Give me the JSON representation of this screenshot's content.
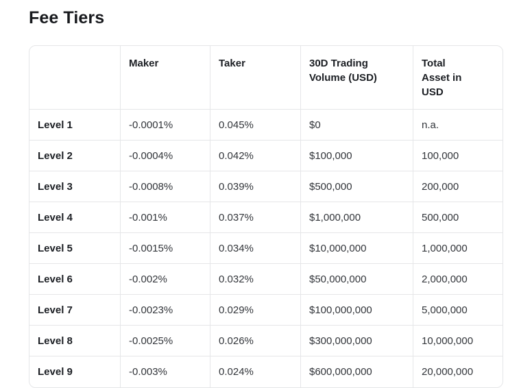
{
  "page": {
    "title": "Fee Tiers"
  },
  "colors": {
    "background": "#ffffff",
    "border": "#e5e6e8",
    "heading_text": "#17191d",
    "bold_cell_text": "#1b1e23",
    "cell_text": "#32353a"
  },
  "table": {
    "columns": [
      "",
      "Maker",
      "Taker",
      "30D Trading Volume (USD)",
      "Total Asset in USD"
    ],
    "rows": [
      {
        "level": "Level 1",
        "maker": "-0.0001%",
        "taker": "0.045%",
        "volume": "$0",
        "asset": "n.a."
      },
      {
        "level": "Level 2",
        "maker": "-0.0004%",
        "taker": "0.042%",
        "volume": "$100,000",
        "asset": "100,000"
      },
      {
        "level": "Level 3",
        "maker": "-0.0008%",
        "taker": "0.039%",
        "volume": "$500,000",
        "asset": "200,000"
      },
      {
        "level": "Level 4",
        "maker": "-0.001%",
        "taker": "0.037%",
        "volume": "$1,000,000",
        "asset": "500,000"
      },
      {
        "level": "Level 5",
        "maker": "-0.0015%",
        "taker": "0.034%",
        "volume": "$10,000,000",
        "asset": "1,000,000"
      },
      {
        "level": "Level 6",
        "maker": "-0.002%",
        "taker": "0.032%",
        "volume": "$50,000,000",
        "asset": "2,000,000"
      },
      {
        "level": "Level 7",
        "maker": "-0.0023%",
        "taker": "0.029%",
        "volume": "$100,000,000",
        "asset": "5,000,000"
      },
      {
        "level": "Level 8",
        "maker": "-0.0025%",
        "taker": "0.026%",
        "volume": "$300,000,000",
        "asset": "10,000,000"
      },
      {
        "level": "Level 9",
        "maker": "-0.003%",
        "taker": "0.024%",
        "volume": "$600,000,000",
        "asset": "20,000,000"
      }
    ]
  }
}
